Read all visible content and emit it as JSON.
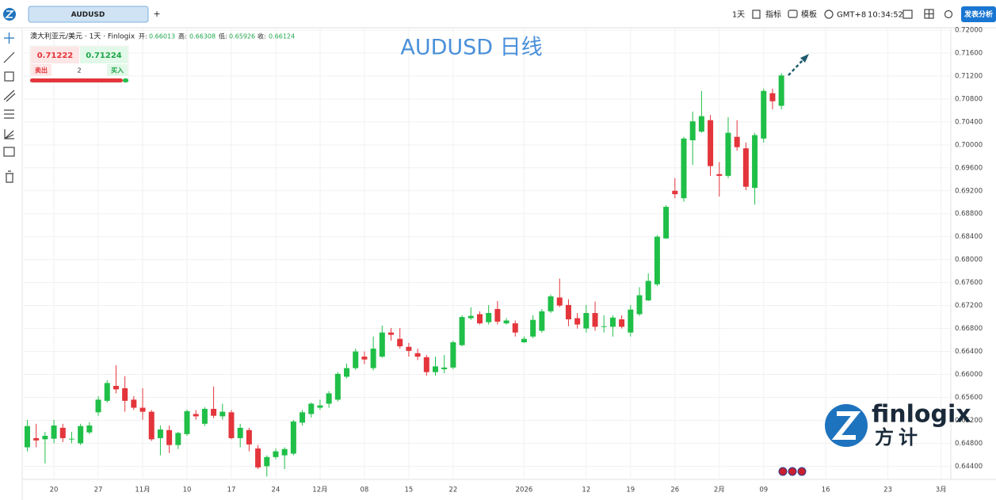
{
  "toolbar": {
    "tab": "AUDUSD",
    "add": "+",
    "interval": "1天",
    "indicators": "指标",
    "templates": "模板",
    "timezone": "GMT+8",
    "time": "10:34:52",
    "publish": "发表分析"
  },
  "legend": {
    "symbol": "澳大利亚元/美元 · 1天 · Finlogix",
    "open_label": "开:",
    "open": "0.66013",
    "high_label": "高:",
    "high": "0.66308",
    "low_label": "低:",
    "low": "0.65926",
    "close_label": "收:",
    "close": "0.66124"
  },
  "trade": {
    "sell_price": "0.71222",
    "buy_price": "0.71224",
    "sell": "卖出",
    "quantity": "2",
    "buy": "买入"
  },
  "logo": {
    "name": "finlogix",
    "cn": "方计"
  },
  "chart_data": {
    "type": "candlestick",
    "title": "AUDUSD 日线",
    "open": [
      0.6473,
      0.6489,
      0.6487,
      0.6488,
      0.6507,
      0.6487,
      0.648,
      0.6499,
      0.6534,
      0.6554,
      0.658,
      0.6576,
      0.6556,
      0.6542,
      0.6535,
      0.6489,
      0.6503,
      0.6477,
      0.6496,
      0.6531,
      0.6514,
      0.654,
      0.6527,
      0.6534,
      0.6489,
      0.6503,
      0.6471,
      0.644,
      0.6456,
      0.6459,
      0.6462,
      0.6516,
      0.6531,
      0.6542,
      0.6549,
      0.6556,
      0.6596,
      0.6611,
      0.6631,
      0.6611,
      0.6631,
      0.6673,
      0.6662,
      0.6648,
      0.6637,
      0.663,
      0.6604,
      0.6609,
      0.6612,
      0.6651,
      0.6698,
      0.6705,
      0.6691,
      0.6714,
      0.6689,
      0.6689,
      0.6656,
      0.6666,
      0.6676,
      0.671,
      0.6734,
      0.6721,
      0.6698,
      0.668,
      0.6707,
      0.6683,
      0.6683,
      0.6696,
      0.6673,
      0.6705,
      0.6729,
      0.6757,
      0.6837,
      0.692,
      0.6907,
      0.7008,
      0.7023,
      0.7043,
      0.6949,
      0.6946,
      0.7014,
      0.6994,
      0.6925,
      0.7011,
      0.709,
      0.7068
    ],
    "high": [
      0.6521,
      0.6514,
      0.65,
      0.6521,
      0.6514,
      0.65,
      0.6514,
      0.6517,
      0.6562,
      0.659,
      0.6616,
      0.6597,
      0.6562,
      0.6576,
      0.6538,
      0.6511,
      0.6511,
      0.65,
      0.6539,
      0.6538,
      0.6543,
      0.6579,
      0.6549,
      0.6538,
      0.6514,
      0.6507,
      0.6477,
      0.6459,
      0.6471,
      0.6473,
      0.6521,
      0.6538,
      0.6551,
      0.6556,
      0.6571,
      0.6604,
      0.6619,
      0.6645,
      0.664,
      0.6666,
      0.6685,
      0.6681,
      0.6681,
      0.6655,
      0.6645,
      0.6634,
      0.6631,
      0.6634,
      0.6659,
      0.6703,
      0.6717,
      0.671,
      0.6721,
      0.6728,
      0.6698,
      0.6694,
      0.6666,
      0.6703,
      0.6714,
      0.6739,
      0.6767,
      0.6731,
      0.6707,
      0.6721,
      0.6727,
      0.6703,
      0.6703,
      0.6703,
      0.6721,
      0.6752,
      0.6776,
      0.6843,
      0.6895,
      0.6942,
      0.7014,
      0.7058,
      0.7094,
      0.7052,
      0.697,
      0.7048,
      0.7043,
      0.7004,
      0.7021,
      0.7098,
      0.7098,
      0.7125
    ],
    "low": [
      0.6466,
      0.6473,
      0.6445,
      0.648,
      0.6482,
      0.648,
      0.6477,
      0.6496,
      0.6528,
      0.6551,
      0.6567,
      0.6535,
      0.6538,
      0.6521,
      0.6484,
      0.6459,
      0.6463,
      0.647,
      0.6493,
      0.6521,
      0.651,
      0.6524,
      0.6521,
      0.6487,
      0.6473,
      0.6466,
      0.6435,
      0.6422,
      0.6452,
      0.6435,
      0.6459,
      0.6511,
      0.6525,
      0.6538,
      0.6542,
      0.6553,
      0.6593,
      0.6608,
      0.6618,
      0.6607,
      0.6629,
      0.6659,
      0.6645,
      0.6631,
      0.6625,
      0.6598,
      0.6598,
      0.6602,
      0.6609,
      0.6649,
      0.6695,
      0.6687,
      0.6687,
      0.6687,
      0.6687,
      0.6666,
      0.6655,
      0.6663,
      0.6673,
      0.6707,
      0.6717,
      0.6684,
      0.668,
      0.6673,
      0.6676,
      0.6673,
      0.6666,
      0.668,
      0.6666,
      0.6702,
      0.6728,
      0.6754,
      0.6836,
      0.6907,
      0.6901,
      0.6965,
      0.7021,
      0.6946,
      0.691,
      0.6942,
      0.699,
      0.6921,
      0.6896,
      0.7004,
      0.7062,
      0.7062
    ],
    "close": [
      0.651,
      0.6485,
      0.6493,
      0.6511,
      0.6489,
      0.6488,
      0.651,
      0.6511,
      0.6556,
      0.6585,
      0.6574,
      0.6554,
      0.6542,
      0.6535,
      0.6487,
      0.6504,
      0.6477,
      0.6498,
      0.6536,
      0.6527,
      0.654,
      0.6528,
      0.6535,
      0.6489,
      0.6507,
      0.6478,
      0.6438,
      0.6456,
      0.6466,
      0.647,
      0.6518,
      0.6534,
      0.6549,
      0.6546,
      0.6567,
      0.6601,
      0.6611,
      0.664,
      0.6626,
      0.6645,
      0.6673,
      0.6669,
      0.6649,
      0.6641,
      0.6631,
      0.6604,
      0.6614,
      0.6612,
      0.6656,
      0.67,
      0.6702,
      0.6689,
      0.6707,
      0.6692,
      0.6694,
      0.6673,
      0.6662,
      0.6695,
      0.671,
      0.6736,
      0.672,
      0.6696,
      0.6687,
      0.6707,
      0.6683,
      0.6684,
      0.6699,
      0.6683,
      0.6713,
      0.6738,
      0.6763,
      0.684,
      0.6892,
      0.6914,
      0.7011,
      0.7041,
      0.705,
      0.6963,
      0.6946,
      0.7021,
      0.6996,
      0.6927,
      0.7017,
      0.7094,
      0.7076,
      0.7121
    ],
    "up_color": "#1fbf48",
    "down_color": "#e3353b",
    "ylim": [
      0.6424,
      0.7211
    ],
    "yticks": [
      {
        "value": 0.72,
        "label": "0.72000"
      },
      {
        "value": 0.716,
        "label": "0.71600"
      },
      {
        "value": 0.712,
        "label": "0.71200"
      },
      {
        "value": 0.708,
        "label": "0.70800"
      },
      {
        "value": 0.704,
        "label": "0.70400"
      },
      {
        "value": 0.7,
        "label": "0.70000"
      },
      {
        "value": 0.696,
        "label": "0.69600"
      },
      {
        "value": 0.692,
        "label": "0.69200"
      },
      {
        "value": 0.688,
        "label": "0.68800"
      },
      {
        "value": 0.684,
        "label": "0.68400"
      },
      {
        "value": 0.68,
        "label": "0.68000"
      },
      {
        "value": 0.676,
        "label": "0.67600"
      },
      {
        "value": 0.672,
        "label": "0.67200"
      },
      {
        "value": 0.668,
        "label": "0.66800"
      },
      {
        "value": 0.664,
        "label": "0.66400"
      },
      {
        "value": 0.66,
        "label": "0.66000"
      },
      {
        "value": 0.656,
        "label": "0.65600"
      },
      {
        "value": 0.652,
        "label": "0.65200"
      },
      {
        "value": 0.648,
        "label": "0.64800"
      },
      {
        "value": 0.644,
        "label": "0.64400"
      }
    ],
    "xlim": [
      -0.4,
      104.1
    ],
    "xticks": [
      {
        "value": 3,
        "label": "20"
      },
      {
        "value": 8,
        "label": "27"
      },
      {
        "value": 13,
        "label": "11月"
      },
      {
        "value": 18,
        "label": "10"
      },
      {
        "value": 23,
        "label": "17"
      },
      {
        "value": 28,
        "label": "24"
      },
      {
        "value": 33,
        "label": "12月"
      },
      {
        "value": 38,
        "label": "08"
      },
      {
        "value": 43,
        "label": "15"
      },
      {
        "value": 48,
        "label": "22"
      },
      {
        "value": 56,
        "label": "2026"
      },
      {
        "value": 63,
        "label": "12"
      },
      {
        "value": 68,
        "label": "19"
      },
      {
        "value": 73,
        "label": "26"
      },
      {
        "value": 78,
        "label": "2月"
      },
      {
        "value": 83,
        "label": "09"
      },
      {
        "value": 90,
        "label": "16"
      },
      {
        "value": 97,
        "label": "23"
      },
      {
        "value": 103,
        "label": "3月"
      }
    ],
    "grid": true
  }
}
